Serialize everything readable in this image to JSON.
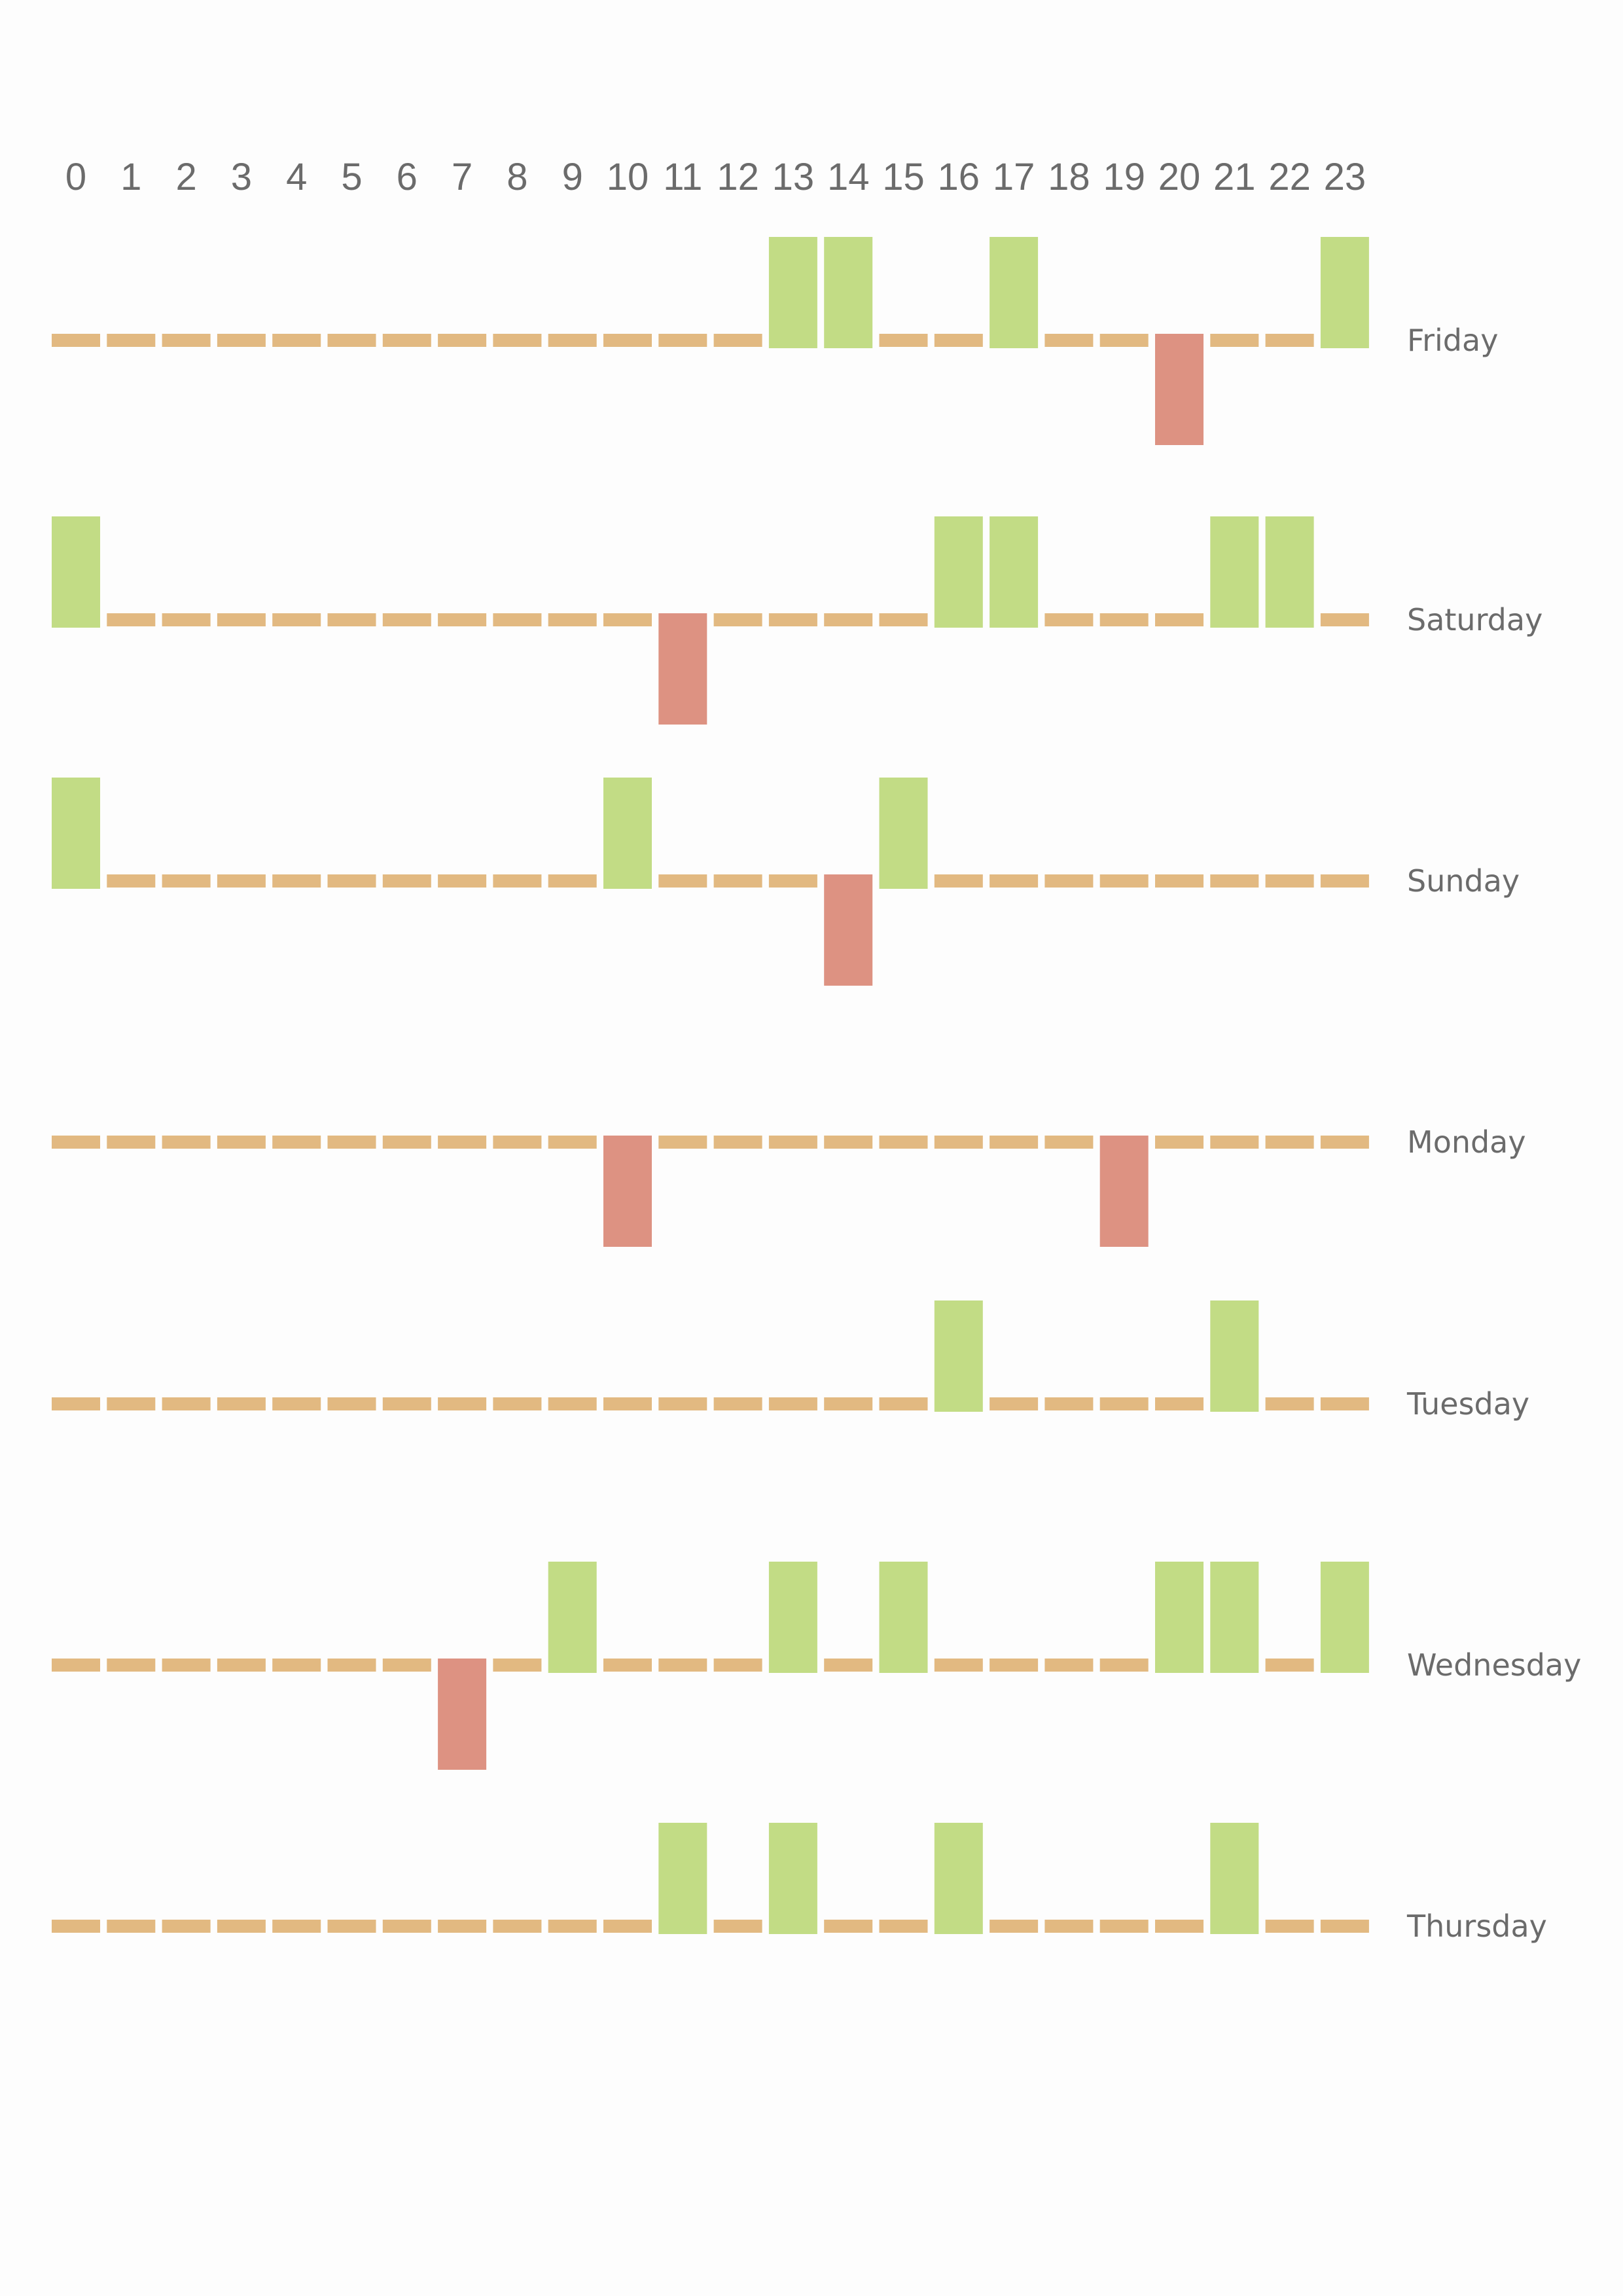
{
  "chart_data": {
    "type": "heatmap",
    "title": "",
    "xlabel": "",
    "ylabel": "",
    "hours": [
      "0",
      "1",
      "2",
      "3",
      "4",
      "5",
      "6",
      "7",
      "8",
      "9",
      "10",
      "11",
      "12",
      "13",
      "14",
      "15",
      "16",
      "17",
      "18",
      "19",
      "20",
      "21",
      "22",
      "23"
    ],
    "value_range": [
      -1,
      1
    ],
    "legend": "none",
    "colors": {
      "positive": "#c2dc85",
      "neutral": "#e2b981",
      "negative": "#dd9282"
    },
    "series": [
      {
        "name": "Friday",
        "values": [
          0,
          0,
          0,
          0,
          0,
          0,
          0,
          0,
          0,
          0,
          0,
          0,
          0,
          1,
          1,
          0,
          0,
          1,
          0,
          0,
          -1,
          0,
          0,
          1
        ]
      },
      {
        "name": "Saturday",
        "values": [
          1,
          0,
          0,
          0,
          0,
          0,
          0,
          0,
          0,
          0,
          0,
          -1,
          0,
          0,
          0,
          0,
          1,
          1,
          0,
          0,
          0,
          1,
          1,
          0
        ]
      },
      {
        "name": "Sunday",
        "values": [
          1,
          0,
          0,
          0,
          0,
          0,
          0,
          0,
          0,
          0,
          1,
          0,
          0,
          0,
          -1,
          1,
          0,
          0,
          0,
          0,
          0,
          0,
          0,
          0
        ]
      },
      {
        "name": "Monday",
        "values": [
          0,
          0,
          0,
          0,
          0,
          0,
          0,
          0,
          0,
          0,
          -1,
          0,
          0,
          0,
          0,
          0,
          0,
          0,
          0,
          -1,
          0,
          0,
          0,
          0
        ]
      },
      {
        "name": "Tuesday",
        "values": [
          0,
          0,
          0,
          0,
          0,
          0,
          0,
          0,
          0,
          0,
          0,
          0,
          0,
          0,
          0,
          0,
          1,
          0,
          0,
          0,
          0,
          1,
          0,
          0
        ]
      },
      {
        "name": "Wednesday",
        "values": [
          0,
          0,
          0,
          0,
          0,
          0,
          0,
          -1,
          0,
          1,
          0,
          0,
          0,
          1,
          0,
          1,
          0,
          0,
          0,
          0,
          1,
          1,
          0,
          1
        ]
      },
      {
        "name": "Thursday",
        "values": [
          0,
          0,
          0,
          0,
          0,
          0,
          0,
          0,
          0,
          0,
          0,
          1,
          0,
          1,
          0,
          0,
          1,
          0,
          0,
          0,
          0,
          1,
          0,
          0
        ]
      }
    ]
  }
}
